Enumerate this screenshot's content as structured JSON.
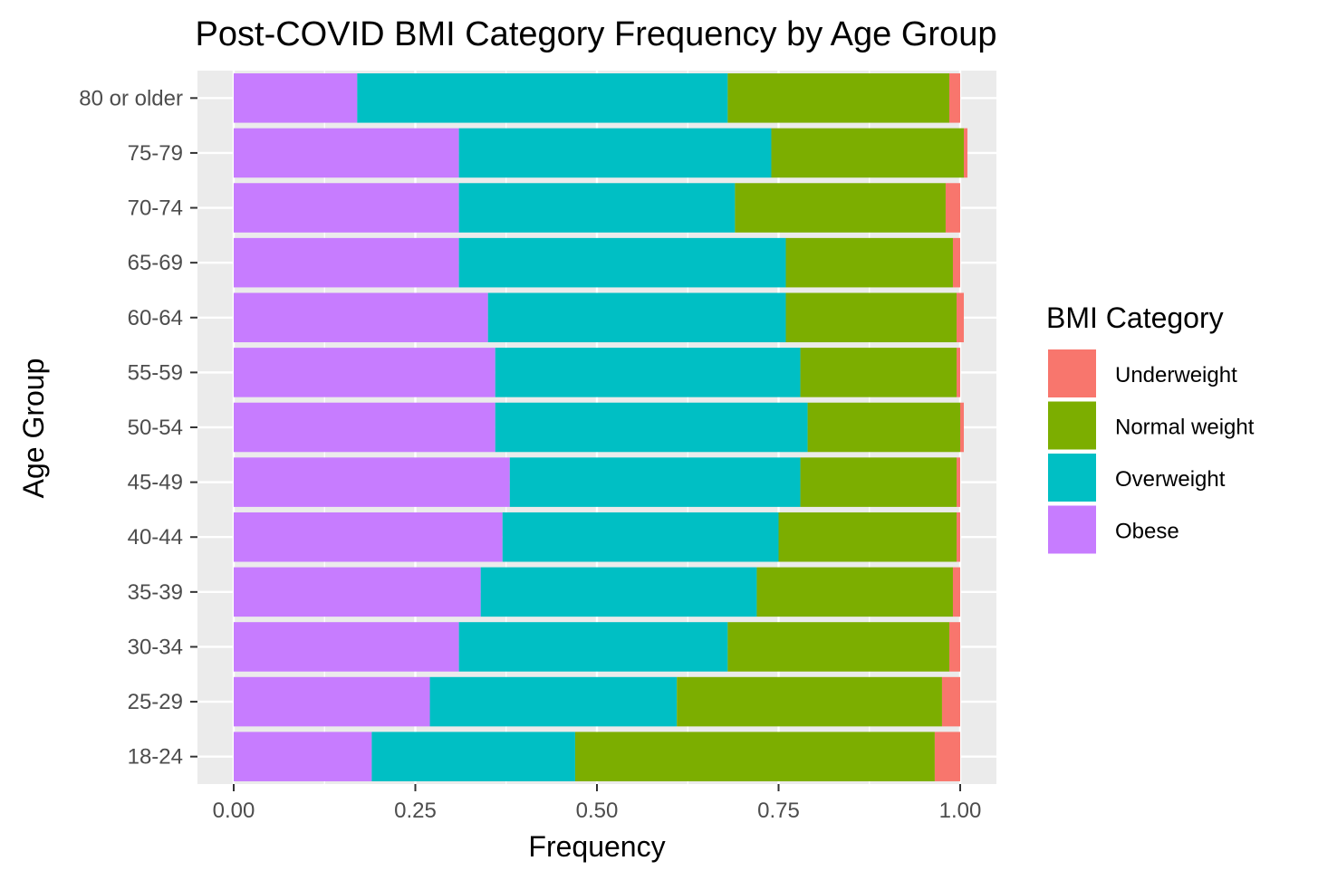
{
  "chart_data": {
    "type": "bar",
    "orientation": "horizontal",
    "stacked": true,
    "title": "Post-COVID BMI Category Frequency by Age Group",
    "xlabel": "Frequency",
    "ylabel": "Age Group",
    "xlim": [
      -0.05,
      1.05
    ],
    "x_ticks": [
      "0.00",
      "0.25",
      "0.50",
      "0.75",
      "1.00"
    ],
    "x_tick_values": [
      0,
      0.25,
      0.5,
      0.75,
      1.0
    ],
    "grid": true,
    "legend_title": "BMI Category",
    "legend_position": "right",
    "categories": [
      "80 or older",
      "75-79",
      "70-74",
      "65-69",
      "60-64",
      "55-59",
      "50-54",
      "45-49",
      "40-44",
      "35-39",
      "30-34",
      "25-29",
      "18-24"
    ],
    "series": [
      {
        "name": "Obese",
        "color": "#C77CFF",
        "values": [
          0.17,
          0.31,
          0.31,
          0.31,
          0.35,
          0.36,
          0.36,
          0.38,
          0.37,
          0.34,
          0.31,
          0.27,
          0.19
        ]
      },
      {
        "name": "Overweight",
        "color": "#00BFC4",
        "values": [
          0.51,
          0.43,
          0.38,
          0.45,
          0.41,
          0.42,
          0.43,
          0.4,
          0.38,
          0.38,
          0.37,
          0.34,
          0.28
        ]
      },
      {
        "name": "Normal weight",
        "color": "#7CAE00",
        "values": [
          0.305,
          0.265,
          0.29,
          0.23,
          0.235,
          0.215,
          0.21,
          0.215,
          0.245,
          0.27,
          0.305,
          0.365,
          0.495
        ]
      },
      {
        "name": "Underweight",
        "color": "#F8766D",
        "values": [
          0.015,
          0.005,
          0.02,
          0.01,
          0.01,
          0.005,
          0.005,
          0.005,
          0.005,
          0.01,
          0.015,
          0.025,
          0.035
        ]
      }
    ],
    "legend_order": [
      "Underweight",
      "Normal weight",
      "Overweight",
      "Obese"
    ]
  }
}
